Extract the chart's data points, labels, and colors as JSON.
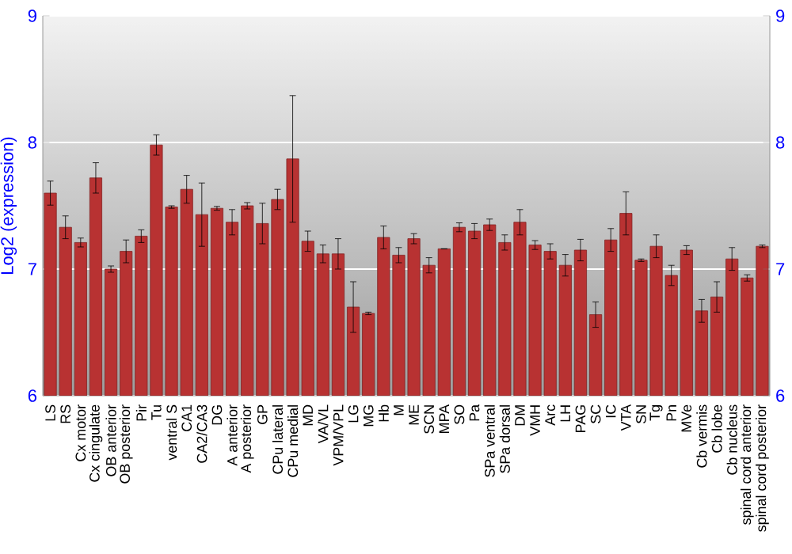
{
  "chart_data": {
    "type": "bar",
    "ylabel": "Log2 (expression)",
    "categories": [
      "LS",
      "RS",
      "Cx motor",
      "Cx cingulate",
      "OB anterior",
      "OB posterior",
      "Pir",
      "Tu",
      "ventral S",
      "CA1",
      "CA2/CA3",
      "DG",
      "A anterior",
      "A posterior",
      "GP",
      "CPu lateral",
      "CPu medial",
      "MD",
      "VA/VL",
      "VPM/VPL",
      "LG",
      "MG",
      "Hb",
      "M",
      "ME",
      "SCN",
      "MPA",
      "SO",
      "Pa",
      "SPa ventral",
      "SPa dorsal",
      "DM",
      "VMH",
      "Arc",
      "LH",
      "PAG",
      "SC",
      "IC",
      "VTA",
      "SN",
      "Tg",
      "Pn",
      "MVe",
      "Cb vermis",
      "Cb lobe",
      "Cb nucleus",
      "spinal cord anterior",
      "spinal cord posterior"
    ],
    "values": [
      7.6,
      7.33,
      7.21,
      7.72,
      7.0,
      7.14,
      7.26,
      7.98,
      7.49,
      7.63,
      7.43,
      7.48,
      7.37,
      7.5,
      7.36,
      7.55,
      7.87,
      7.22,
      7.12,
      7.12,
      6.7,
      6.65,
      7.25,
      7.11,
      7.24,
      7.03,
      7.16,
      7.33,
      7.3,
      7.35,
      7.21,
      7.37,
      7.19,
      7.14,
      7.03,
      7.15,
      6.64,
      7.23,
      7.44,
      7.07,
      7.18,
      6.95,
      7.15,
      6.67,
      6.78,
      7.08,
      6.93,
      7.18
    ],
    "errors": [
      0.095,
      0.09,
      0.035,
      0.12,
      0.025,
      0.09,
      0.05,
      0.08,
      0.01,
      0.11,
      0.25,
      0.015,
      0.1,
      0.025,
      0.16,
      0.08,
      0.5,
      0.08,
      0.07,
      0.12,
      0.2,
      0.01,
      0.09,
      0.06,
      0.04,
      0.06,
      0,
      0.035,
      0.06,
      0.045,
      0.06,
      0.1,
      0.035,
      0.06,
      0.085,
      0.085,
      0.1,
      0.09,
      0.17,
      0.01,
      0.09,
      0.08,
      0.035,
      0.09,
      0.12,
      0.09,
      0.025,
      0.01
    ],
    "color": "#b83232",
    "ylim": [
      6,
      9
    ],
    "yticks": [
      6,
      7,
      8,
      9
    ],
    "y2lim": [
      6,
      9
    ],
    "y2ticks": [
      6,
      7,
      8,
      9
    ],
    "grid": "y"
  }
}
